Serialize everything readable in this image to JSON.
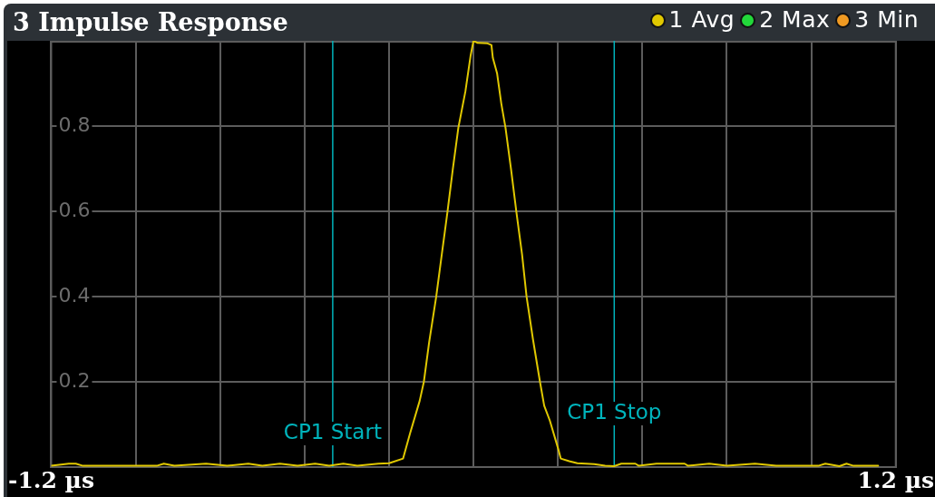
{
  "chart_data": {
    "type": "line",
    "title": "3 Impulse Response",
    "x": [
      -1.2,
      -1.15,
      -1.13,
      -1.11,
      -0.9,
      -0.88,
      -0.85,
      -0.76,
      -0.7,
      -0.64,
      -0.6,
      -0.55,
      -0.5,
      -0.45,
      -0.41,
      -0.37,
      -0.33,
      -0.27,
      -0.24,
      -0.2,
      -0.18,
      -0.153,
      -0.141,
      -0.126,
      -0.106,
      -0.09,
      -0.074,
      -0.059,
      -0.043,
      -0.023,
      -0.008,
      0,
      0.012,
      0.04,
      0.051,
      0.055,
      0.067,
      0.079,
      0.091,
      0.107,
      0.122,
      0.138,
      0.151,
      0.169,
      0.189,
      0.201,
      0.217,
      0.24,
      0.248,
      0.272,
      0.295,
      0.343,
      0.374,
      0.4,
      0.42,
      0.46,
      0.47,
      0.52,
      0.6,
      0.61,
      0.67,
      0.72,
      0.8,
      0.86,
      0.98,
      1.0,
      1.04,
      1.06,
      1.08,
      1.15
    ],
    "series": [
      {
        "name": "1 Avg",
        "color": "#e0c800",
        "values": [
          0.003,
          0.008,
          0.008,
          0.003,
          0.003,
          0.008,
          0.003,
          0.008,
          0.003,
          0.008,
          0.003,
          0.008,
          0.003,
          0.008,
          0.003,
          0.008,
          0.003,
          0.008,
          0.009,
          0.02,
          0.08,
          0.155,
          0.2,
          0.293,
          0.399,
          0.499,
          0.598,
          0.697,
          0.796,
          0.881,
          0.966,
          1.0,
          0.995,
          0.994,
          0.99,
          0.96,
          0.924,
          0.853,
          0.796,
          0.697,
          0.598,
          0.499,
          0.399,
          0.3,
          0.2,
          0.144,
          0.109,
          0.045,
          0.02,
          0.014,
          0.009,
          0.007,
          0.003,
          0.002,
          0.008,
          0.008,
          0.003,
          0.008,
          0.008,
          0.003,
          0.008,
          0.003,
          0.008,
          0.003,
          0.003,
          0.008,
          0.002,
          0.008,
          0.003,
          0.003
        ]
      },
      {
        "name": "2 Max",
        "color": "#22d83a",
        "values": [
          null,
          null,
          null,
          null,
          null,
          null,
          null,
          null,
          null,
          null,
          null,
          null,
          null,
          null,
          null,
          null,
          null,
          null,
          null,
          null,
          null,
          null,
          null,
          null,
          null,
          null,
          null,
          null,
          null,
          null,
          null,
          null,
          null,
          null,
          null,
          null,
          null,
          null,
          null,
          null,
          null,
          null,
          null,
          null,
          null,
          null,
          null,
          null,
          null,
          null,
          null,
          null,
          null,
          null,
          null,
          null,
          null,
          null,
          null,
          null,
          null,
          null,
          null,
          null,
          null,
          null,
          null,
          null,
          null,
          null
        ]
      },
      {
        "name": "3 Min",
        "color": "#f09a22",
        "values": [
          null,
          null,
          null,
          null,
          null,
          null,
          null,
          null,
          null,
          null,
          null,
          null,
          null,
          null,
          null,
          null,
          null,
          null,
          null,
          null,
          null,
          null,
          null,
          null,
          null,
          null,
          null,
          null,
          null,
          null,
          null,
          null,
          null,
          null,
          null,
          null,
          null,
          null,
          null,
          null,
          null,
          null,
          null,
          null,
          null,
          null,
          null,
          null,
          null,
          null,
          null,
          null,
          null,
          null,
          null,
          null,
          null,
          null,
          null,
          null,
          null,
          null,
          null,
          null,
          null,
          null,
          null,
          null,
          null,
          null
        ]
      }
    ],
    "xlim": [
      -1.2,
      1.2
    ],
    "xticks": [
      {
        "value": -1.2,
        "label": "-1.2 µs"
      },
      {
        "value": -0.96,
        "label": null
      },
      {
        "value": -0.72,
        "label": null
      },
      {
        "value": -0.48,
        "label": null
      },
      {
        "value": -0.24,
        "label": null
      },
      {
        "value": 0,
        "label": null
      },
      {
        "value": 0.24,
        "label": null
      },
      {
        "value": 0.48,
        "label": null
      },
      {
        "value": 0.72,
        "label": null
      },
      {
        "value": 0.96,
        "label": null
      },
      {
        "value": 1.2,
        "label": "1.2 µs"
      }
    ],
    "ylim": [
      0,
      1
    ],
    "yticks": [
      0.2,
      0.4,
      0.6,
      0.8
    ],
    "ref_lines": [
      {
        "axis": "x",
        "value": -0.4,
        "label": "CP1 Start",
        "color": "#00b4bc"
      },
      {
        "axis": "x",
        "value": 0.4,
        "label": "CP1 Stop",
        "color": "#00b4bc"
      }
    ],
    "grid": true,
    "legend": "top right",
    "marker": "none",
    "line_style": "solid"
  }
}
